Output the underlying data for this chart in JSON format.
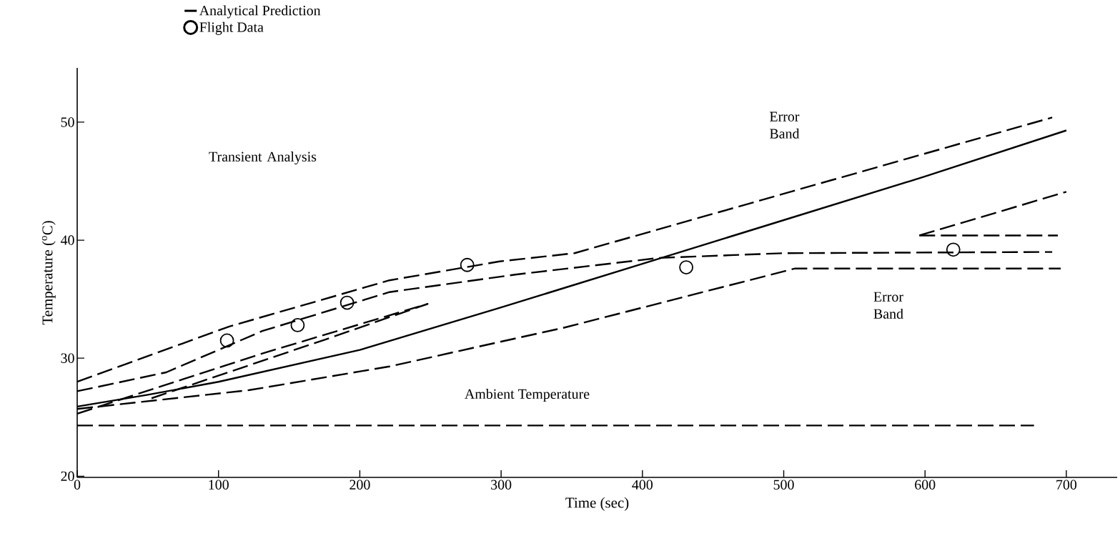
{
  "chart_data": {
    "type": "line",
    "xlabel": "Time (sec)",
    "ylabel": "Temperature ($^{o}$C)",
    "xlim": [
      0,
      736
    ],
    "ylim": [
      19.9,
      54.6
    ],
    "xticks": [
      0,
      100,
      200,
      300,
      400,
      500,
      600,
      700
    ],
    "yticks": [
      20,
      30,
      40,
      50
    ],
    "grid": false,
    "legend": "top left",
    "series": [
      {
        "name": "Analytical Prediction",
        "type": "line",
        "line_style": "solid",
        "color": "#000000",
        "x": [
          0,
          50,
          100,
          200,
          300,
          400,
          500,
          600,
          700
        ],
        "values": [
          25.9,
          26.9,
          28.0,
          30.7,
          34.3,
          38.0,
          41.7,
          45.4,
          49.3
        ]
      },
      {
        "name": "Flight Data",
        "type": "scatter",
        "marker": "circle",
        "color": "#000000",
        "x": [
          106,
          156,
          191,
          276,
          431,
          620
        ],
        "values": [
          31.5,
          32.8,
          34.7,
          37.9,
          37.7,
          39.2
        ]
      },
      {
        "type": "line",
        "line_style": "dashed",
        "color": "#000000",
        "x": [
          0,
          63,
          131,
          221,
          311,
          412,
          500,
          690
        ],
        "values": [
          27.2,
          28.8,
          32.3,
          35.6,
          37.1,
          38.5,
          38.9,
          39.0
        ]
      },
      {
        "type": "line",
        "line_style": "dashed",
        "color": "#000000",
        "x": [
          0,
          108,
          221,
          299,
          352,
          690
        ],
        "values": [
          28.0,
          32.7,
          36.6,
          38.2,
          38.9,
          50.4
        ]
      },
      {
        "type": "line",
        "line_style": "dashed",
        "color": "#000000",
        "x": [
          0,
          122,
          221,
          345,
          508,
          696
        ],
        "values": [
          25.7,
          27.3,
          29.3,
          32.6,
          37.6,
          37.6
        ]
      },
      {
        "type": "line",
        "line_style": "dashed",
        "color": "#000000",
        "x": [
          0,
          131,
          248,
          176,
          50
        ],
        "values": [
          25.3,
          30.4,
          34.6,
          31.6,
          26.5
        ]
      },
      {
        "type": "line",
        "line_style": "dashed",
        "color": "#000000",
        "x": [
          596,
          700
        ],
        "values": [
          40.4,
          44.1
        ]
      },
      {
        "type": "line",
        "line_style": "dashed",
        "color": "#000000",
        "x": [
          596,
          694
        ],
        "values": [
          40.4,
          40.4
        ]
      }
    ],
    "ref_lines": [
      {
        "axis": "y",
        "value": 24.3,
        "label": "Ambient Temperature",
        "color": "#000000",
        "line_style": "dashed"
      }
    ],
    "annotations": [
      "Transient Analysis",
      "Error Band",
      "Error Band"
    ]
  }
}
